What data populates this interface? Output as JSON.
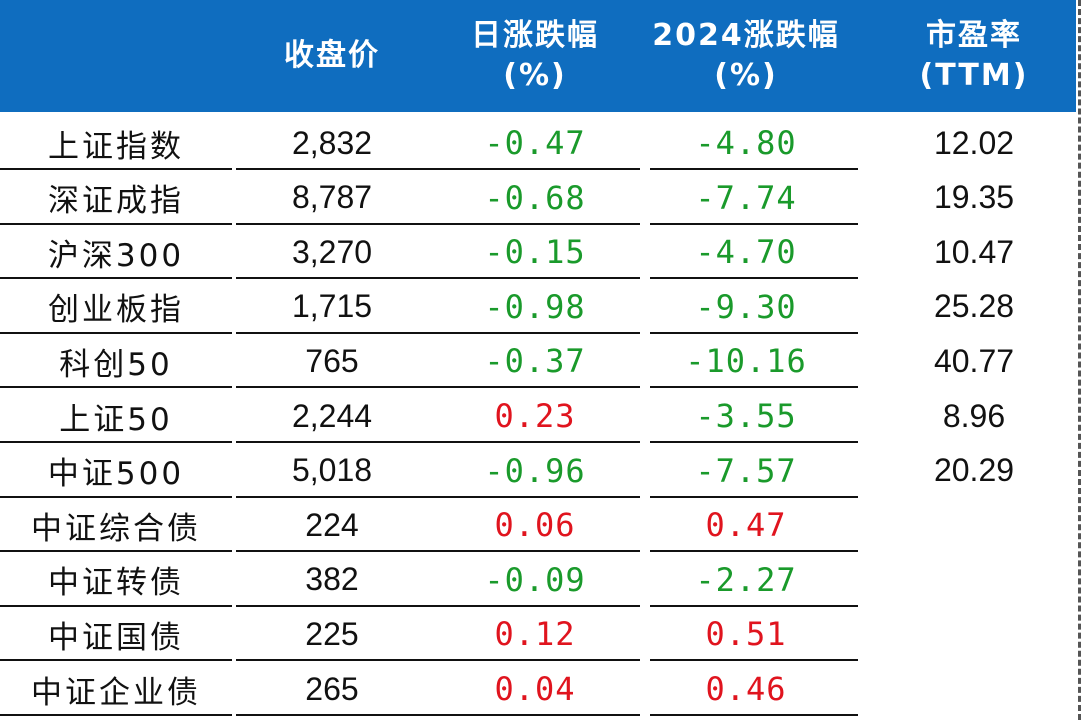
{
  "colors": {
    "header_bg": "#0f6dbf",
    "up": "#e0141e",
    "down": "#1a9a2b"
  },
  "header": {
    "close": "收盘价",
    "daily_line1": "日涨跌幅",
    "daily_line2": "(%)",
    "ytd_line1": "2024涨跌幅",
    "ytd_line2": "(%)",
    "pe_line1": "市盈率",
    "pe_line2": "(TTM)"
  },
  "rows": [
    {
      "name": "上证指数",
      "close": "2,832",
      "daily": "-0.47",
      "daily_dir": "down",
      "ytd": "-4.80",
      "ytd_dir": "down",
      "pe": "12.02"
    },
    {
      "name": "深证成指",
      "close": "8,787",
      "daily": "-0.68",
      "daily_dir": "down",
      "ytd": "-7.74",
      "ytd_dir": "down",
      "pe": "19.35"
    },
    {
      "name": "沪深300",
      "close": "3,270",
      "daily": "-0.15",
      "daily_dir": "down",
      "ytd": "-4.70",
      "ytd_dir": "down",
      "pe": "10.47"
    },
    {
      "name": "创业板指",
      "close": "1,715",
      "daily": "-0.98",
      "daily_dir": "down",
      "ytd": "-9.30",
      "ytd_dir": "down",
      "pe": "25.28"
    },
    {
      "name": "科创50",
      "close": "765",
      "daily": "-0.37",
      "daily_dir": "down",
      "ytd": "-10.16",
      "ytd_dir": "down",
      "pe": "40.77"
    },
    {
      "name": "上证50",
      "close": "2,244",
      "daily": "0.23",
      "daily_dir": "up",
      "ytd": "-3.55",
      "ytd_dir": "down",
      "pe": "8.96"
    },
    {
      "name": "中证500",
      "close": "5,018",
      "daily": "-0.96",
      "daily_dir": "down",
      "ytd": "-7.57",
      "ytd_dir": "down",
      "pe": "20.29"
    },
    {
      "name": "中证综合债",
      "close": "224",
      "daily": "0.06",
      "daily_dir": "up",
      "ytd": "0.47",
      "ytd_dir": "up",
      "pe": ""
    },
    {
      "name": "中证转债",
      "close": "382",
      "daily": "-0.09",
      "daily_dir": "down",
      "ytd": "-2.27",
      "ytd_dir": "down",
      "pe": ""
    },
    {
      "name": "中证国债",
      "close": "225",
      "daily": "0.12",
      "daily_dir": "up",
      "ytd": "0.51",
      "ytd_dir": "up",
      "pe": ""
    },
    {
      "name": "中证企业债",
      "close": "265",
      "daily": "0.04",
      "daily_dir": "up",
      "ytd": "0.46",
      "ytd_dir": "up",
      "pe": ""
    }
  ]
}
